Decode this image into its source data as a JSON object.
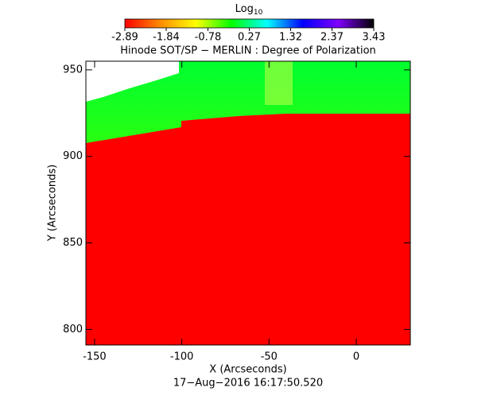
{
  "chart_data": {
    "type": "image",
    "title": "Hinode SOT/SP − MERLIN : Degree of Polarization",
    "colorbar_label": {
      "text": "Log",
      "subscript": "10"
    },
    "clim": [
      -2.89,
      3.43
    ],
    "cticks": [
      -2.89,
      -1.84,
      -0.78,
      0.27,
      1.32,
      2.37,
      3.43
    ],
    "colormap": [
      "#ff0000",
      "#ff8c00",
      "#ffff00",
      "#00ff00",
      "#00ffff",
      "#0000ff",
      "#8000ff",
      "#000000"
    ],
    "x_label": "X (Arcseconds)",
    "y_label": "Y (Arcseconds)",
    "footer": "17−Aug−2016 16:17:50.520",
    "xlim": [
      -155,
      31
    ],
    "xticks": [
      -150,
      -100,
      -50,
      0
    ],
    "ylim": [
      791,
      955
    ],
    "yticks": [
      800,
      850,
      900,
      950
    ]
  }
}
